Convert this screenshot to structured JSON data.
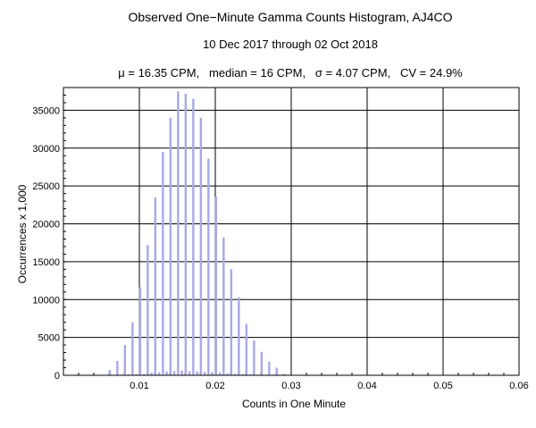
{
  "chart_data": {
    "type": "bar",
    "title": "Observed One−Minute Gamma Counts Histogram, AJ4CO",
    "subtitle": "10 Dec 2017 through 02 Oct 2018",
    "stats_line": "μ = 16.35 CPM,   median = 16 CPM,   σ = 4.07 CPM,   CV = 24.9%",
    "xlabel": "Counts in One Minute",
    "ylabel": "Occurrences x 1,000",
    "xlim": [
      0,
      0.06
    ],
    "ylim": [
      0,
      38000
    ],
    "x_ticks": [
      "0.01",
      "0.02",
      "0.03",
      "0.04",
      "0.05",
      "0.06"
    ],
    "x_tick_values": [
      0.01,
      0.02,
      0.03,
      0.04,
      0.05,
      0.06
    ],
    "y_ticks": [
      "0",
      "5000",
      "10000",
      "15000",
      "20000",
      "25000",
      "30000",
      "35000"
    ],
    "y_tick_values": [
      0,
      5000,
      10000,
      15000,
      20000,
      25000,
      30000,
      35000
    ],
    "grid": true,
    "bar_color": "#a8a8e6",
    "series": [
      {
        "x": [
          0.0061,
          0.0071,
          0.0081,
          0.0091,
          0.0101,
          0.0111,
          0.0121,
          0.0131,
          0.0141,
          0.0151,
          0.0161,
          0.0171,
          0.0181,
          0.0191,
          0.0201,
          0.0211,
          0.0221,
          0.0231,
          0.0241,
          0.0251,
          0.0261,
          0.0271,
          0.0281,
          0.0291
        ],
        "values": [
          700,
          1900,
          4000,
          7000,
          11600,
          17200,
          23500,
          29500,
          34000,
          37500,
          37200,
          36500,
          34000,
          28600,
          23600,
          18200,
          14000,
          10300,
          6800,
          4600,
          3100,
          1800,
          1000,
          200
        ]
      },
      {
        "x": [
          0.0066,
          0.0076,
          0.0086,
          0.0096,
          0.0106,
          0.0116,
          0.0126,
          0.0136,
          0.0146,
          0.0156,
          0.0166,
          0.0176,
          0.0186,
          0.0196,
          0.0206,
          0.0216,
          0.0226,
          0.0236,
          0.0246,
          0.0256,
          0.0266,
          0.0276,
          0.0286
        ],
        "values": [
          50,
          80,
          120,
          150,
          200,
          350,
          400,
          500,
          550,
          600,
          550,
          500,
          450,
          400,
          350,
          250,
          200,
          150,
          120,
          80,
          60,
          40,
          20
        ]
      }
    ]
  }
}
